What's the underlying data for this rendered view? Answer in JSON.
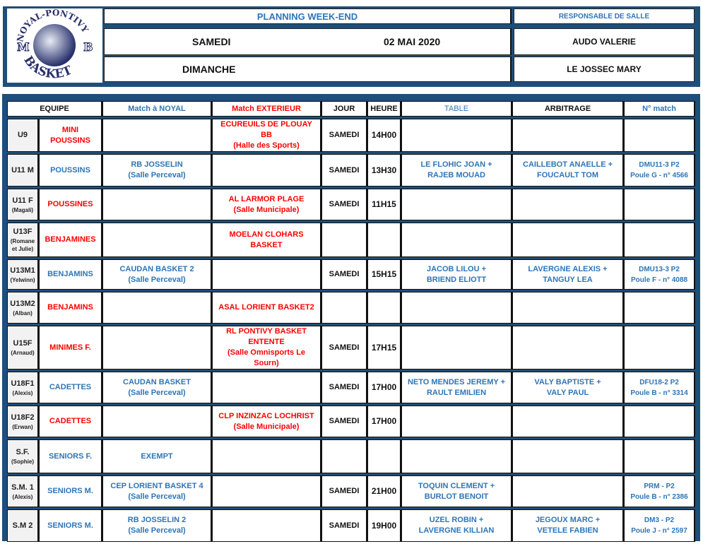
{
  "header": {
    "logo_text": "NOYAL-PONTIVY MB BASKET",
    "title": "PLANNING WEEK-END",
    "responsable_label": "RESPONSABLE DE SALLE",
    "day1": "SAMEDI",
    "date": "02 MAI 2020",
    "responsable1": "AUDO VALERIE",
    "day2": "DIMANCHE",
    "responsable2": "LE JOSSEC MARY"
  },
  "columns": {
    "equipe": "EQUIPE",
    "noyal": "Match à NOYAL",
    "exterieur": "Match EXTERIEUR",
    "jour": "JOUR",
    "heure": "HEURE",
    "table": "TABLE",
    "arbitrage": "ARBITRAGE",
    "match": "N° match"
  },
  "colors": {
    "frame": "#1f4e79",
    "home": "#2e75b6",
    "away": "#ff0000"
  },
  "rows": [
    {
      "code": "U9",
      "coach": "",
      "team": "MINI POUSSINS",
      "team_color": "red",
      "noyal": "",
      "ext": "ECUREUILS DE PLOUAY BB\n(Halle des Sports)",
      "jour": "SAMEDI",
      "heure": "14H00",
      "table": "",
      "arbitrage": "",
      "match": ""
    },
    {
      "code": "U11 M",
      "coach": "",
      "team": "POUSSINS",
      "team_color": "blue",
      "noyal": "RB JOSSELIN\n(Salle Perceval)",
      "ext": "",
      "jour": "SAMEDI",
      "heure": "13H30",
      "table": "LE FLOHIC JOAN +\nRAJEB MOUAD",
      "arbitrage": "CAILLEBOT ANAELLE +\nFOUCAULT TOM",
      "match": "DMU11-3 P2\nPoule G - n° 4566"
    },
    {
      "code": "U11 F",
      "coach": "(Magali)",
      "team": "POUSSINES",
      "team_color": "red",
      "noyal": "",
      "ext": "AL LARMOR PLAGE\n(Salle Municipale)",
      "jour": "SAMEDI",
      "heure": "11H15",
      "table": "",
      "arbitrage": "",
      "match": ""
    },
    {
      "code": "U13F",
      "coach": "(Romane et Julie)",
      "team": "BENJAMINES",
      "team_color": "red",
      "noyal": "",
      "ext": "MOELAN CLOHARS BASKET",
      "jour": "",
      "heure": "",
      "table": "",
      "arbitrage": "",
      "match": ""
    },
    {
      "code": "U13M1",
      "coach": "(Yelwinn)",
      "team": "BENJAMINS",
      "team_color": "blue",
      "noyal": "CAUDAN BASKET 2\n(Salle Perceval)",
      "ext": "",
      "jour": "SAMEDI",
      "heure": "15H15",
      "table": "JACOB LILOU +\nBRIEND ELIOTT",
      "arbitrage": "LAVERGNE ALEXIS +\nTANGUY LEA",
      "match": "DMU13-3 P2\nPoule F - n° 4088"
    },
    {
      "code": "U13M2",
      "coach": "(Alban)",
      "team": "BENJAMINS",
      "team_color": "red",
      "noyal": "",
      "ext": "ASAL LORIENT BASKET2",
      "jour": "",
      "heure": "",
      "table": "",
      "arbitrage": "",
      "match": ""
    },
    {
      "code": "U15F",
      "coach": "(Arnaud)",
      "team": "MINIMES F.",
      "team_color": "red",
      "noyal": "",
      "ext": "RL PONTIVY BASKET ENTENTE\n(Salle Omnisports Le Sourn)",
      "jour": "SAMEDI",
      "heure": "17H15",
      "table": "",
      "arbitrage": "",
      "match": ""
    },
    {
      "code": "U18F1",
      "coach": "(Alexis)",
      "team": "CADETTES",
      "team_color": "blue",
      "noyal": "CAUDAN BASKET\n(Salle Perceval)",
      "ext": "",
      "jour": "SAMEDI",
      "heure": "17H00",
      "table": "NETO MENDES JEREMY +\nRAULT EMILIEN",
      "arbitrage": "VALY BAPTISTE +\nVALY PAUL",
      "match": "DFU18-2 P2\nPoule B - n° 3314"
    },
    {
      "code": "U18F2",
      "coach": "(Erwan)",
      "team": "CADETTES",
      "team_color": "red",
      "noyal": "",
      "ext": "CLP INZINZAC LOCHRIST\n(Salle Municipale)",
      "jour": "SAMEDI",
      "heure": "17H00",
      "table": "",
      "arbitrage": "",
      "match": ""
    },
    {
      "code": "S.F.",
      "coach": "(Sophie)",
      "team": "SENIORS F.",
      "team_color": "blue",
      "noyal": "EXEMPT",
      "ext": "",
      "jour": "",
      "heure": "",
      "table": "",
      "arbitrage": "",
      "match": ""
    },
    {
      "code": "S.M. 1",
      "coach": "(Alexis)",
      "team": "SENIORS M.",
      "team_color": "blue",
      "noyal": "CEP LORIENT BASKET 4\n(Salle Perceval)",
      "ext": "",
      "jour": "SAMEDI",
      "heure": "21H00",
      "table": "TOQUIN CLEMENT +\nBURLOT BENOIT",
      "arbitrage": "",
      "match": "PRM - P2\nPoule B - n° 2386"
    },
    {
      "code": "S.M 2",
      "coach": "",
      "team": "SENIORS M.",
      "team_color": "blue",
      "noyal": "RB JOSSELIN 2\n(Salle Perceval)",
      "ext": "",
      "jour": "SAMEDI",
      "heure": "19H00",
      "table": "UZEL ROBIN +\nLAVERGNE KILLIAN",
      "arbitrage": "JEGOUX MARC +\nVETELE FABIEN",
      "match": "DM3 - P2\nPoule J - n° 2597"
    }
  ]
}
